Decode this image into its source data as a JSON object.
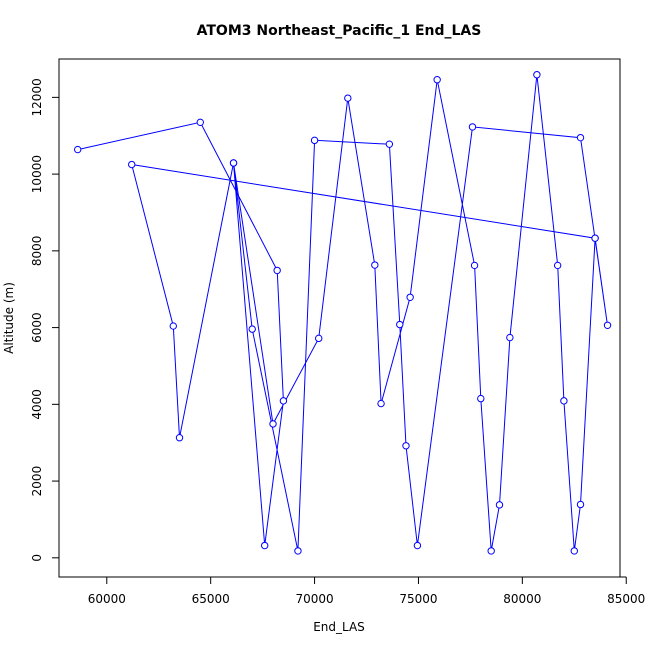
{
  "chart_data": {
    "type": "line",
    "title": "ATOM3 Northeast_Pacific_1 End_LAS",
    "xlabel": "End_LAS",
    "ylabel": "Altitude (m)",
    "xlim": [
      57700,
      84700
    ],
    "ylim": [
      -500,
      13000
    ],
    "xticks": [
      60000,
      65000,
      70000,
      75000,
      80000,
      85000
    ],
    "yticks": [
      0,
      2000,
      4000,
      6000,
      8000,
      10000,
      12000
    ],
    "grid": false,
    "series": [
      {
        "color": "#0000ff",
        "marker": "open-circle",
        "points": [
          [
            58600,
            10640
          ],
          [
            64500,
            11350
          ],
          [
            68200,
            7490
          ],
          [
            68500,
            4090
          ],
          [
            67600,
            320
          ],
          [
            66100,
            10290
          ],
          [
            67000,
            5960
          ],
          [
            69200,
            180
          ],
          [
            70000,
            10880
          ],
          [
            73600,
            10780
          ],
          [
            74100,
            6080
          ],
          [
            74400,
            2920
          ],
          [
            74950,
            320
          ],
          [
            77600,
            11230
          ],
          [
            82800,
            10950
          ],
          [
            84100,
            6060
          ],
          [
            83500,
            8330
          ],
          [
            61200,
            10250
          ],
          [
            63200,
            6040
          ],
          [
            63500,
            3130
          ],
          [
            66100,
            10290
          ],
          [
            68000,
            3490
          ],
          [
            70200,
            5720
          ],
          [
            71600,
            11980
          ],
          [
            72900,
            7630
          ],
          [
            73200,
            4020
          ],
          [
            74600,
            6790
          ],
          [
            75900,
            12460
          ],
          [
            77700,
            7620
          ],
          [
            78000,
            4150
          ],
          [
            78500,
            180
          ],
          [
            78900,
            1380
          ],
          [
            79400,
            5740
          ],
          [
            80700,
            12590
          ],
          [
            81700,
            7620
          ],
          [
            82000,
            4090
          ],
          [
            82500,
            180
          ],
          [
            82800,
            1390
          ],
          [
            83500,
            8330
          ]
        ]
      }
    ]
  }
}
